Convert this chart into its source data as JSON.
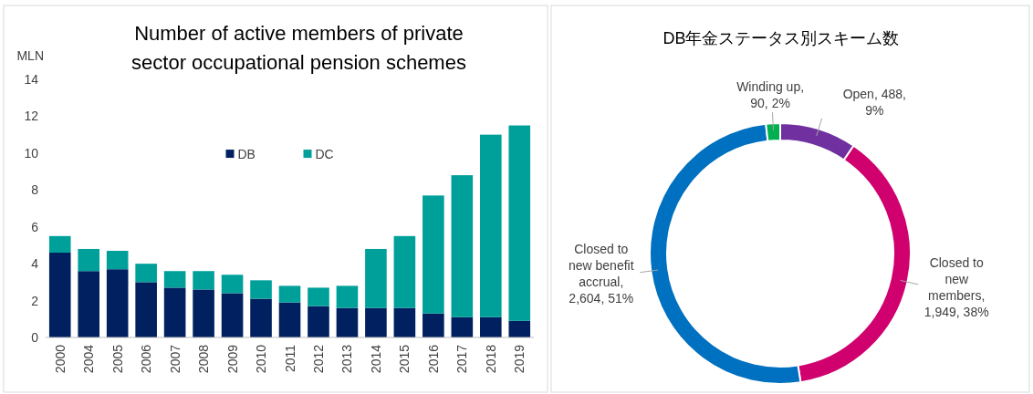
{
  "chart_data": [
    {
      "type": "bar",
      "stacked": true,
      "title": "Number of active members of private sector occupational pension schemes",
      "ylabel": "MLN",
      "categories": [
        "2000",
        "2004",
        "2005",
        "2006",
        "2007",
        "2008",
        "2009",
        "2010",
        "2011",
        "2012",
        "2013",
        "2014",
        "2015",
        "2016",
        "2017",
        "2018",
        "2019"
      ],
      "series": [
        {
          "name": "DB",
          "color": "#002060",
          "values": [
            4.6,
            3.6,
            3.7,
            3.0,
            2.7,
            2.6,
            2.4,
            2.1,
            1.9,
            1.7,
            1.6,
            1.6,
            1.6,
            1.3,
            1.1,
            1.1,
            0.9
          ]
        },
        {
          "name": "DC",
          "color": "#00a09a",
          "values": [
            0.9,
            1.2,
            1.0,
            1.0,
            0.9,
            1.0,
            1.0,
            1.0,
            0.9,
            1.0,
            1.2,
            3.2,
            3.9,
            6.4,
            7.7,
            9.9,
            10.6
          ]
        }
      ],
      "ylim": [
        0,
        14
      ],
      "yticks": [
        0,
        2,
        4,
        6,
        8,
        10,
        12,
        14
      ],
      "grid": false,
      "legend": "top"
    },
    {
      "type": "donut",
      "title": "DB年金ステータス別スキーム数",
      "categories": [
        "Open, 488, 9%",
        "Closed to new members, 1,949, 38%",
        "Closed to new benefit accrual, 2,604, 51%",
        "Winding up, 90, 2%"
      ],
      "values": [
        488,
        1949,
        2604,
        90
      ],
      "colors": [
        "#7030a0",
        "#d0006f",
        "#0070c0",
        "#00b050"
      ]
    }
  ]
}
